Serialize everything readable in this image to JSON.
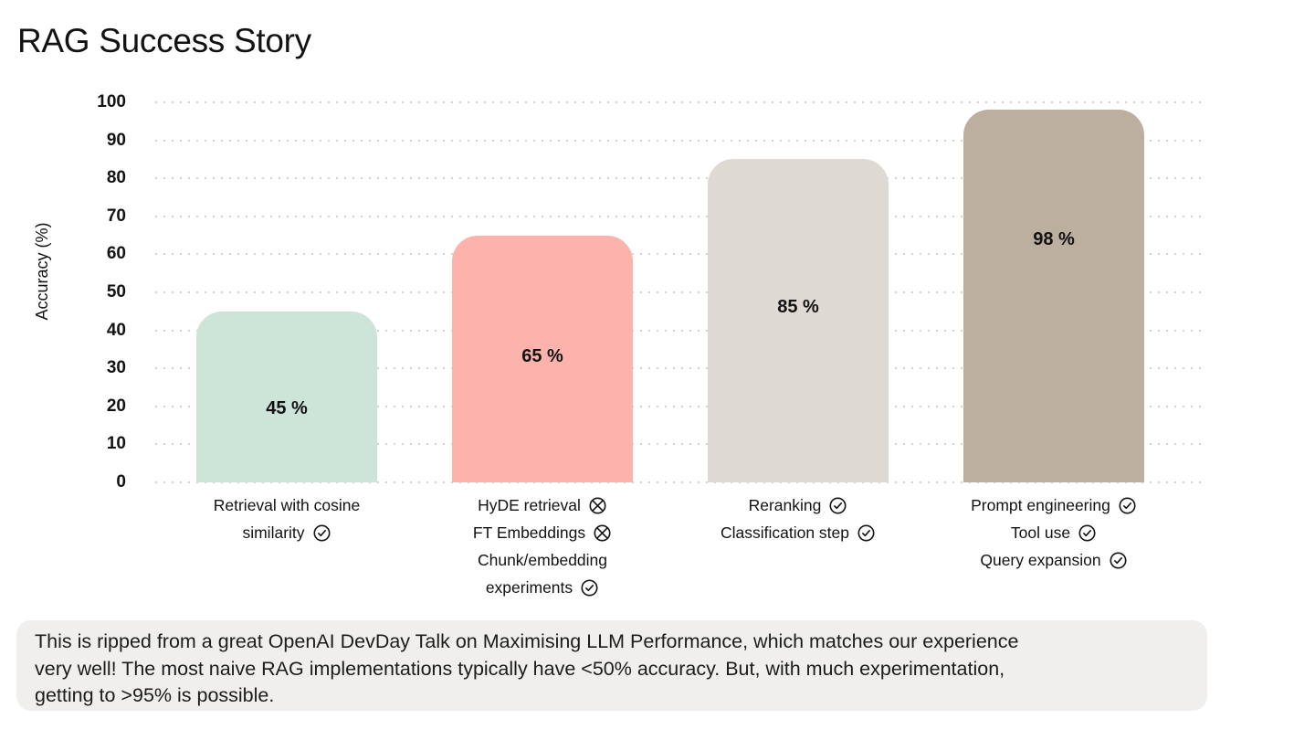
{
  "title": "RAG Success Story",
  "colors": {
    "background": "#ffffff",
    "grid_dot": "#c3c3c3",
    "text": "#121212",
    "footer_background": "#f0efed"
  },
  "chart_data": {
    "type": "bar",
    "title": "RAG Success Story",
    "xlabel": "",
    "ylabel": "Accuracy (%)",
    "ylim": [
      0,
      100
    ],
    "ytick_interval": 10,
    "grid": "horizontal dotted",
    "legend": "none",
    "categories": [
      "Retrieval with cosine similarity",
      "HyDE retrieval / FT Embeddings / Chunk/embedding experiments",
      "Reranking / Classification step",
      "Prompt engineering / Tool use / Query expansion"
    ],
    "values": [
      45,
      65,
      85,
      98
    ],
    "bars": [
      {
        "value": 45,
        "value_label": "45 %",
        "color": "#cde4d8",
        "lines": [
          {
            "text": "Retrieval with cosine"
          },
          {
            "text": "similarity",
            "icon": "check-circle"
          }
        ]
      },
      {
        "value": 65,
        "value_label": "65 %",
        "color": "#fcb3ab",
        "lines": [
          {
            "text": "HyDE retrieval",
            "icon": "x-circle"
          },
          {
            "text": "FT Embeddings",
            "icon": "x-circle"
          },
          {
            "text": "Chunk/embedding"
          },
          {
            "text": "experiments",
            "icon": "check-circle"
          }
        ]
      },
      {
        "value": 85,
        "value_label": "85 %",
        "color": "#ded9d3",
        "lines": [
          {
            "text": "Reranking",
            "icon": "check-circle"
          },
          {
            "text": "Classification step",
            "icon": "check-circle"
          }
        ]
      },
      {
        "value": 98,
        "value_label": "98 %",
        "color": "#bcaf9f",
        "lines": [
          {
            "text": "Prompt engineering",
            "icon": "check-circle"
          },
          {
            "text": "Tool use",
            "icon": "check-circle"
          },
          {
            "text": "Query expansion",
            "icon": "check-circle"
          }
        ]
      }
    ]
  },
  "footer": {
    "lines": [
      "This is ripped from a great OpenAI DevDay Talk on Maximising LLM Performance, which matches our experience",
      "very well! The most naive RAG implementations typically have <50% accuracy. But, with much experimentation,",
      "getting to >95% is possible."
    ]
  }
}
